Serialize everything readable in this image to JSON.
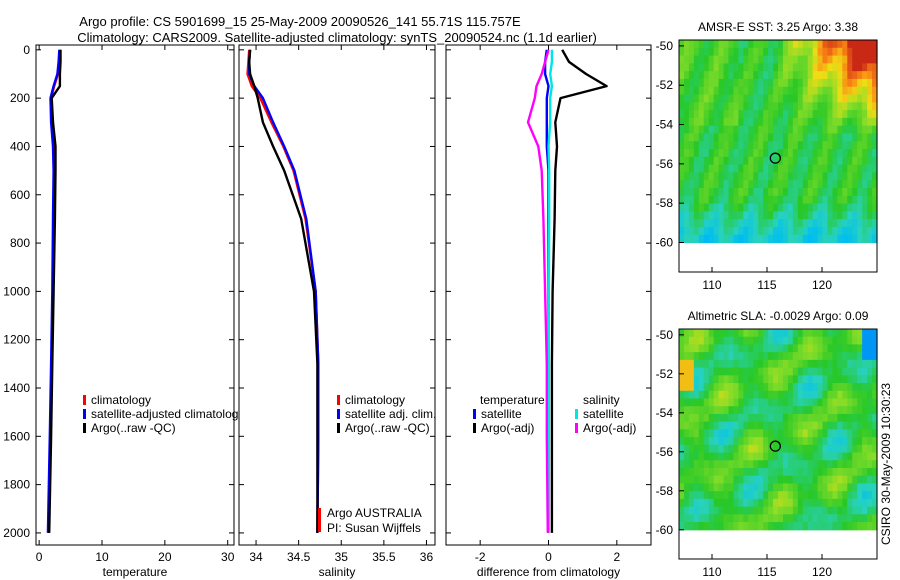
{
  "title": {
    "line1": "Argo profile: CS 5901699_15 25-May-2009 20090526_141 55.71S 115.757E",
    "line2": "Climatology: CARS2009. Satellite-adjusted climatology: synTS_20090524.nc (1.1d earlier)"
  },
  "stamp": "CSIRO 30-May-2009 10:30:23",
  "colors": {
    "climatology": "#ff0000",
    "satellite": "#0000ff",
    "argo": "#000000",
    "cyan": "#00e5e5",
    "magenta": "#ff00ff"
  },
  "chart_data": [
    {
      "type": "line",
      "panel": "temperature",
      "xlabel": "temperature",
      "xlim": [
        -0.5,
        31
      ],
      "ylim": [
        2050,
        -20
      ],
      "xticks": [
        0,
        10,
        20,
        30
      ],
      "yticks": [
        0,
        200,
        400,
        600,
        800,
        1000,
        1200,
        1400,
        1600,
        1800,
        2000
      ],
      "depth": [
        0,
        50,
        100,
        150,
        200,
        300,
        400,
        500,
        700,
        1000,
        1300,
        1600,
        2000
      ],
      "series": [
        {
          "name": "climatology",
          "color": "#ff0000",
          "values": [
            3.3,
            3.2,
            3.0,
            2.4,
            1.9,
            2.0,
            2.3,
            2.4,
            2.3,
            2.2,
            2.0,
            1.8,
            1.5
          ]
        },
        {
          "name": "satellite-adjusted climatology",
          "color": "#0000ff",
          "values": [
            3.2,
            3.1,
            2.9,
            2.3,
            1.8,
            1.9,
            2.2,
            2.3,
            2.2,
            2.1,
            1.9,
            1.7,
            1.4
          ]
        },
        {
          "name": "Argo(..raw -QC)",
          "color": "#000000",
          "values": [
            3.4,
            3.4,
            3.3,
            3.3,
            2.0,
            2.2,
            2.6,
            2.6,
            2.5,
            2.3,
            2.1,
            1.9,
            1.6
          ]
        }
      ],
      "legend": [
        "climatology",
        "satellite-adjusted climatolog",
        "Argo(..raw -QC)"
      ]
    },
    {
      "type": "line",
      "panel": "salinity",
      "xlabel": "salinity",
      "xlim": [
        33.8,
        36.1
      ],
      "ylim": [
        2050,
        -20
      ],
      "xticks": [
        34,
        34.5,
        35,
        35.5,
        36
      ],
      "xticklabels": [
        "34",
        "34.5",
        "35",
        "35.5",
        "36"
      ],
      "depth": [
        0,
        50,
        100,
        150,
        200,
        300,
        400,
        500,
        700,
        1000,
        1300,
        1600,
        2000
      ],
      "series": [
        {
          "name": "climatology",
          "color": "#ff0000",
          "values": [
            33.92,
            33.91,
            33.9,
            33.95,
            34.05,
            34.18,
            34.32,
            34.44,
            34.58,
            34.7,
            34.73,
            34.73,
            34.72
          ]
        },
        {
          "name": "satellite adj. clim.",
          "color": "#0000ff",
          "values": [
            33.93,
            33.92,
            33.92,
            33.98,
            34.08,
            34.2,
            34.33,
            34.45,
            34.59,
            34.7,
            34.73,
            34.73,
            34.72
          ]
        },
        {
          "name": "Argo(..raw -QC)",
          "color": "#000000",
          "values": [
            33.93,
            33.92,
            33.93,
            33.98,
            34.02,
            34.08,
            34.2,
            34.33,
            34.53,
            34.68,
            34.72,
            34.72,
            34.72
          ]
        }
      ],
      "legend": [
        "climatology",
        "satellite adj. clim.",
        "Argo(..raw -QC)"
      ],
      "annotation": [
        "Argo AUSTRALIA",
        "PI: Susan Wijffels"
      ]
    },
    {
      "type": "line",
      "panel": "difference",
      "xlabel": "difference from climatology",
      "xlim": [
        -3,
        3
      ],
      "ylim": [
        2050,
        -20
      ],
      "xticks": [
        -2,
        0,
        2
      ],
      "xticklabels": [
        "-2",
        "0",
        "2"
      ],
      "depth": [
        0,
        50,
        100,
        150,
        200,
        300,
        400,
        500,
        700,
        1000,
        1300,
        1600,
        2000
      ],
      "series": [
        {
          "name": "temperature satellite",
          "color": "#0000ff",
          "values": [
            -0.05,
            -0.1,
            -0.1,
            0.0,
            -0.05,
            -0.05,
            -0.05,
            0.0,
            0.0,
            0.0,
            0.0,
            0.0,
            0.0
          ]
        },
        {
          "name": "temperature Argo(-adj)",
          "color": "#000000",
          "values": [
            0.4,
            0.6,
            1.1,
            1.7,
            0.35,
            0.2,
            0.25,
            0.2,
            0.18,
            0.12,
            0.1,
            0.1,
            0.1
          ]
        },
        {
          "name": "salinity satellite",
          "color": "#00e5e5",
          "values": [
            0.1,
            0.1,
            0.05,
            0.1,
            0.05,
            0.05,
            0.0,
            0.02,
            0.02,
            0.01,
            0.01,
            0.0,
            0.0
          ]
        },
        {
          "name": "salinity Argo(-adj)",
          "color": "#ff00ff",
          "values": [
            0.0,
            -0.1,
            -0.2,
            -0.35,
            -0.4,
            -0.6,
            -0.3,
            -0.2,
            -0.15,
            -0.1,
            -0.05,
            -0.05,
            -0.02
          ]
        }
      ],
      "legend_headers": [
        "temperature",
        "salinity"
      ],
      "legend": [
        [
          "satellite",
          "Argo(-adj)"
        ],
        [
          "satellite",
          "Argo(-adj)"
        ]
      ]
    },
    {
      "type": "heatmap",
      "panel": "sst-map",
      "title": "AMSR-E SST: 3.25 Argo: 3.38",
      "xticks": [
        110,
        115,
        120
      ],
      "yticks": [
        -50,
        -52,
        -54,
        -56,
        -58,
        -60
      ],
      "xlim": [
        107,
        125
      ],
      "ylim": [
        -61.5,
        -49.7
      ],
      "data_extent": {
        "lon": [
          107,
          125
        ],
        "lat": [
          -60,
          -49.7
        ]
      },
      "marker": {
        "lon": 115.757,
        "lat": -55.71
      }
    },
    {
      "type": "heatmap",
      "panel": "sla-map",
      "title": "Altimetric SLA: -0.0029 Argo: 0.09",
      "xticks": [
        110,
        115,
        120
      ],
      "yticks": [
        -50,
        -52,
        -54,
        -56,
        -58,
        -60
      ],
      "xlim": [
        107,
        125
      ],
      "ylim": [
        -61.5,
        -49.7
      ],
      "data_extent": {
        "lon": [
          107,
          125
        ],
        "lat": [
          -60,
          -49.7
        ]
      },
      "marker": {
        "lon": 115.757,
        "lat": -55.71
      }
    }
  ]
}
